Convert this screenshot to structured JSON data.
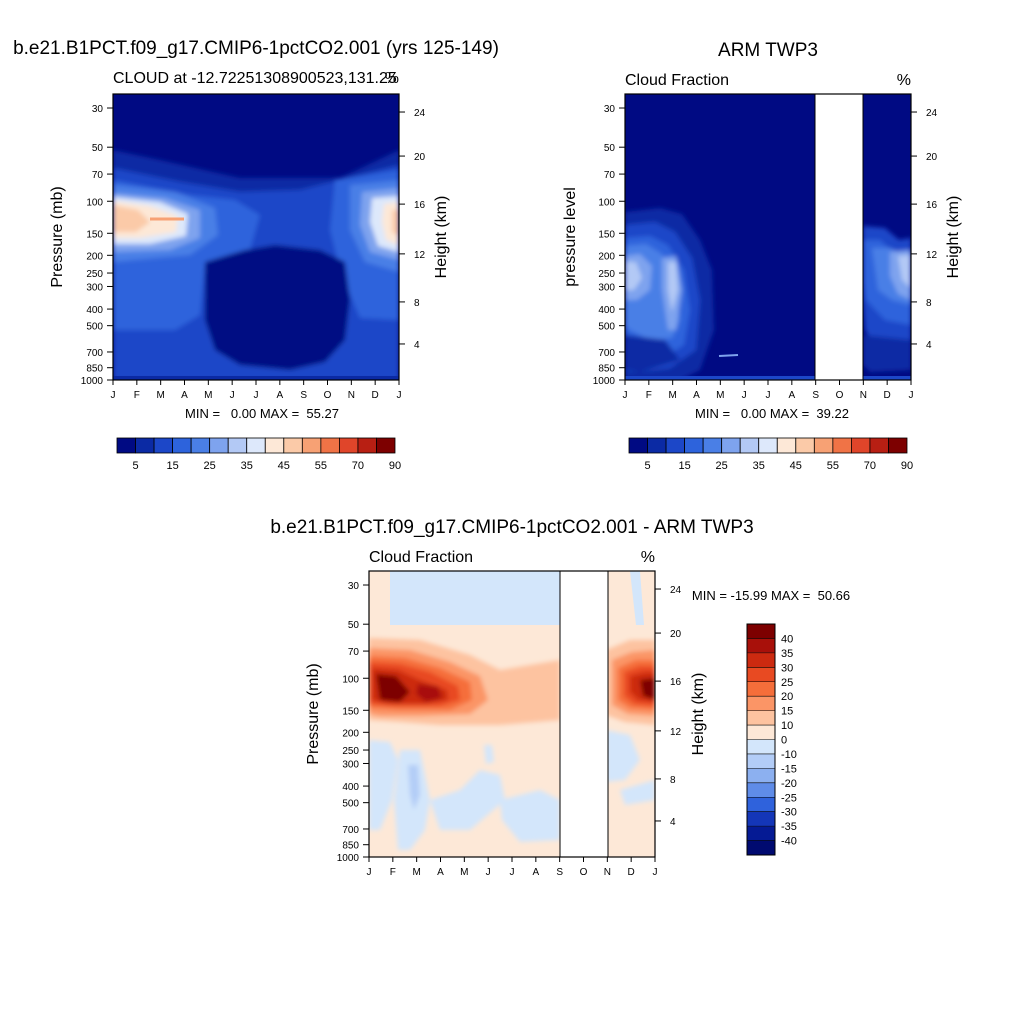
{
  "chart_data": [
    {
      "type": "heatmap",
      "title": "b.e21.B1PCT.f09_g17.CMIP6-1pctCO2.001 (yrs 125-149)",
      "subtitle_left": "CLOUD at -12.72251308900523,131.25",
      "subtitle_right": "%",
      "ylabel": "Pressure (mb)",
      "ylabel_right": "Height (km)",
      "x_ticks": [
        "J",
        "F",
        "M",
        "A",
        "M",
        "J",
        "J",
        "A",
        "S",
        "O",
        "N",
        "D",
        "J"
      ],
      "y_ticks": [
        "30",
        "50",
        "70",
        "100",
        "150",
        "200",
        "250",
        "300",
        "400",
        "500",
        "700",
        "850",
        "1000"
      ],
      "height_ticks": [
        "24",
        "20",
        "16",
        "12",
        "8",
        "4"
      ],
      "stats": "MIN =   0.00 MAX =  55.27",
      "colorbar_labels": [
        "5",
        "15",
        "25",
        "35",
        "45",
        "55",
        "70",
        "90"
      ],
      "colorbar_colors": [
        "#000a83",
        "#0b2aa4",
        "#1c47c8",
        "#2d63dc",
        "#4a7fe6",
        "#7ea3ee",
        "#b3c9f5",
        "#dde8fb",
        "#fde8d7",
        "#fbcaa8",
        "#f7a174",
        "#f07346",
        "#e0452a",
        "#b81f13",
        "#7d0000"
      ]
    },
    {
      "type": "heatmap",
      "title": "ARM TWP3",
      "subtitle_left": "Cloud Fraction",
      "subtitle_right": "%",
      "ylabel": "pressure level",
      "ylabel_right": "Height (km)",
      "x_ticks": [
        "J",
        "F",
        "M",
        "A",
        "M",
        "J",
        "J",
        "A",
        "S",
        "O",
        "N",
        "D",
        "J"
      ],
      "y_ticks": [
        "30",
        "50",
        "70",
        "100",
        "150",
        "200",
        "250",
        "300",
        "400",
        "500",
        "700",
        "850",
        "1000"
      ],
      "height_ticks": [
        "24",
        "20",
        "16",
        "12",
        "8",
        "4"
      ],
      "stats": "MIN =   0.00 MAX =  39.22",
      "colorbar_labels": [
        "5",
        "15",
        "25",
        "35",
        "45",
        "55",
        "70",
        "90"
      ],
      "colorbar_colors": [
        "#000a83",
        "#0b2aa4",
        "#1c47c8",
        "#2d63dc",
        "#4a7fe6",
        "#7ea3ee",
        "#b3c9f5",
        "#dde8fb",
        "#fde8d7",
        "#fbcaa8",
        "#f7a174",
        "#f07346",
        "#e0452a",
        "#b81f13",
        "#7d0000"
      ]
    },
    {
      "type": "heatmap",
      "title": "b.e21.B1PCT.f09_g17.CMIP6-1pctCO2.001 - ARM TWP3",
      "subtitle_left": "Cloud Fraction",
      "subtitle_right": "%",
      "ylabel": "Pressure (mb)",
      "ylabel_right": "Height (km)",
      "x_ticks": [
        "J",
        "F",
        "M",
        "A",
        "M",
        "J",
        "J",
        "A",
        "S",
        "O",
        "N",
        "D",
        "J"
      ],
      "y_ticks": [
        "30",
        "50",
        "70",
        "100",
        "150",
        "200",
        "250",
        "300",
        "400",
        "500",
        "700",
        "850",
        "1000"
      ],
      "height_ticks": [
        "24",
        "20",
        "16",
        "12",
        "8",
        "4"
      ],
      "stats": "MIN = -15.99 MAX =  50.66",
      "colorbar_labels": [
        "40",
        "35",
        "30",
        "25",
        "20",
        "15",
        "10",
        "0",
        "-10",
        "-15",
        "-20",
        "-25",
        "-30",
        "-35",
        "-40"
      ],
      "colorbar_colors": [
        "#7d0000",
        "#a8100a",
        "#cc2a10",
        "#e84a22",
        "#f56e3a",
        "#fb9566",
        "#fdc3a0",
        "#fde8d7",
        "#d3e6fb",
        "#b3cdf7",
        "#8cb0f0",
        "#5f8ce8",
        "#2f62dc",
        "#1436b8",
        "#051a94",
        "#000a70"
      ]
    }
  ]
}
